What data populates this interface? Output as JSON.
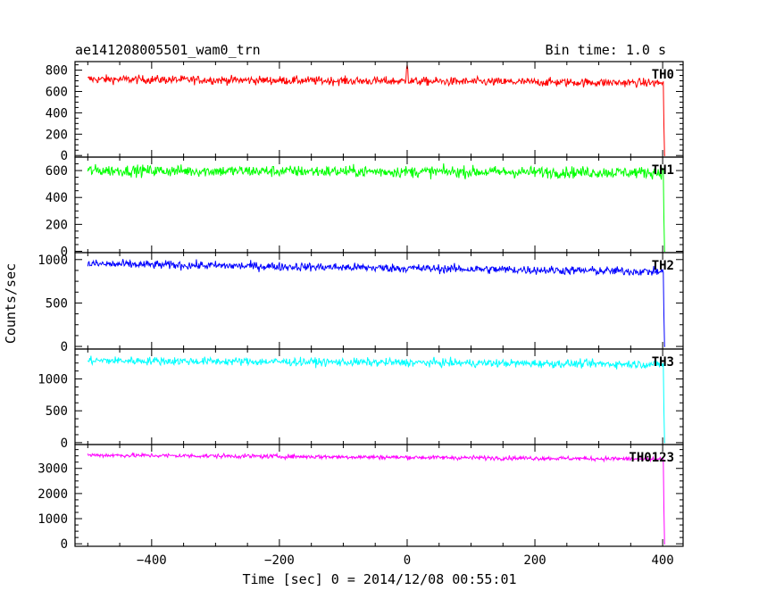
{
  "header": {
    "title": "ae141208005501_wam0_trn",
    "bin_time": "Bin time: 1.0 s"
  },
  "chart_data": {
    "type": "line",
    "xlabel": "Time [sec] 0 = 2014/12/08 00:55:01",
    "ylabel": "Counts/sec",
    "xlim": [
      -520,
      432
    ],
    "xticks": [
      -400,
      -200,
      0,
      200,
      400
    ],
    "xtick_labels": [
      "−400",
      "−200",
      "0",
      "200",
      "400"
    ],
    "grid": false,
    "x_start": -500,
    "x_drop": 403,
    "panels": [
      {
        "name": "TH0",
        "color": "#ff0000",
        "ylim": [
          -15,
          880
        ],
        "yticks": [
          0,
          200,
          400,
          600,
          800
        ],
        "level_start": 715,
        "level_end": 680,
        "noise": 28,
        "spike_x": 0,
        "spike_value": 850
      },
      {
        "name": "TH1",
        "color": "#00ff00",
        "ylim": [
          -10,
          700
        ],
        "yticks": [
          0,
          200,
          400,
          600
        ],
        "level_start": 600,
        "level_end": 585,
        "noise": 30,
        "spike_x": null,
        "spike_value": null
      },
      {
        "name": "TH2",
        "color": "#0000ff",
        "ylim": [
          -30,
          1080
        ],
        "yticks": [
          0,
          500,
          1000
        ],
        "level_start": 950,
        "level_end": 860,
        "noise": 35,
        "spike_x": null,
        "spike_value": null
      },
      {
        "name": "TH3",
        "color": "#00ffff",
        "ylim": [
          -30,
          1470
        ],
        "yticks": [
          0,
          500,
          1000
        ],
        "level_start": 1290,
        "level_end": 1230,
        "noise": 45,
        "spike_x": null,
        "spike_value": null
      },
      {
        "name": "TH0123",
        "color": "#ff00ff",
        "ylim": [
          -100,
          3950
        ],
        "yticks": [
          0,
          1000,
          2000,
          3000
        ],
        "level_start": 3530,
        "level_end": 3370,
        "noise": 60,
        "spike_x": null,
        "spike_value": null
      }
    ]
  }
}
